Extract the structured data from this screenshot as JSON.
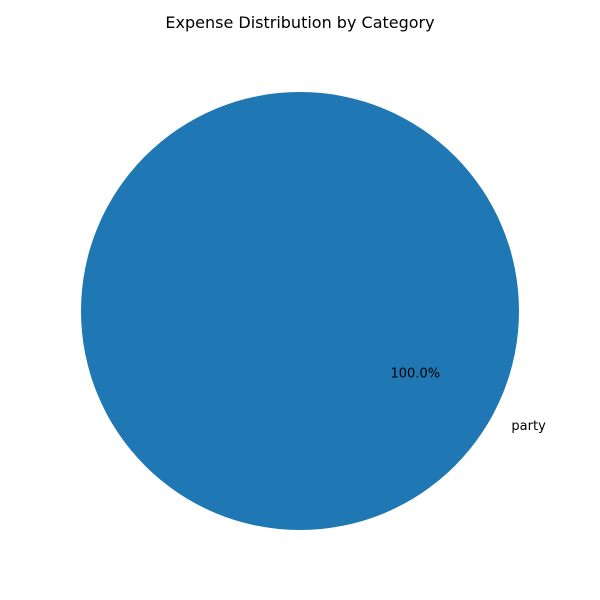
{
  "chart_data": {
    "type": "pie",
    "title": "Expense Distribution by Category",
    "slices": [
      {
        "label": "party",
        "value": 100,
        "percent_label": "100.0%",
        "color": "#1f77b4"
      }
    ],
    "legend": "none"
  }
}
